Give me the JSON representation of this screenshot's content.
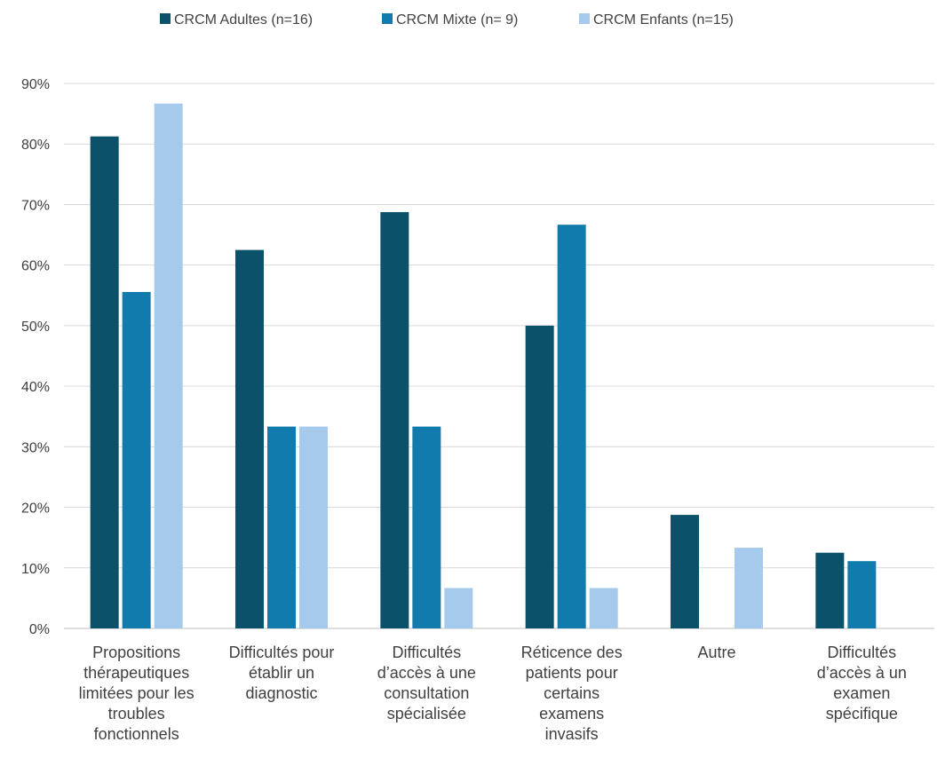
{
  "chart_data": {
    "type": "bar",
    "title": "",
    "xlabel": "",
    "ylabel": "",
    "ylim": [
      0,
      0.9
    ],
    "ytick_values": [
      0,
      0.1,
      0.2,
      0.3,
      0.4,
      0.5,
      0.6,
      0.7,
      0.8,
      0.9
    ],
    "ytick_labels": [
      "0%",
      "10%",
      "20%",
      "30%",
      "40%",
      "50%",
      "60%",
      "70%",
      "80%",
      "90%"
    ],
    "grid": true,
    "legend_position": "top-center",
    "categories": [
      [
        "Propositions",
        "thérapeutiques",
        "limitées pour les",
        "troubles",
        "fonctionnels"
      ],
      [
        "Difficultés pour",
        "établir un",
        "diagnostic"
      ],
      [
        "Difficultés",
        "d’accès à une",
        "consultation",
        "spécialisée"
      ],
      [
        "Réticence des",
        "patients pour",
        "certains",
        "examens",
        "invasifs"
      ],
      [
        "Autre"
      ],
      [
        "Difficultés",
        "d’accès à un",
        "examen",
        "spécifique"
      ]
    ],
    "series": [
      {
        "name": "CRCM Adultes (n=16)",
        "color": "#0b5169",
        "values": [
          0.8125,
          0.625,
          0.6875,
          0.5,
          0.1875,
          0.125
        ]
      },
      {
        "name": "CRCM Mixte (n= 9)",
        "color": "#107bac",
        "values": [
          0.5556,
          0.3333,
          0.3333,
          0.6667,
          0,
          0.1111
        ]
      },
      {
        "name": "CRCM Enfants (n=15)",
        "color": "#a6caec",
        "values": [
          0.8667,
          0.3333,
          0.0667,
          0.0667,
          0.1333,
          0
        ]
      }
    ]
  }
}
